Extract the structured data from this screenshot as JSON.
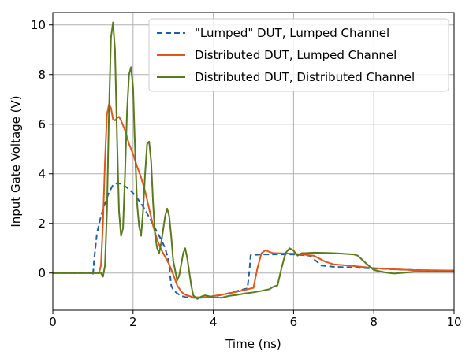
{
  "chart_data": {
    "type": "line",
    "xlabel": "Time (ns)",
    "ylabel": "Input Gate Voltage (V)",
    "xlim": [
      0,
      10
    ],
    "ylim": [
      -1.5,
      10.5
    ],
    "x_ticks": [
      0,
      2,
      4,
      6,
      8,
      10
    ],
    "y_ticks": [
      0,
      2,
      4,
      6,
      8,
      10
    ],
    "grid": true,
    "legend_position": "top-right",
    "series": [
      {
        "name": "\"Lumped\" DUT, Lumped Channel",
        "color": "#1f5fa8",
        "dash": "dashed",
        "points": [
          [
            0,
            0
          ],
          [
            0.99,
            0
          ],
          [
            1.0,
            -0.1
          ],
          [
            1.03,
            0.55
          ],
          [
            1.1,
            1.6
          ],
          [
            1.2,
            2.3
          ],
          [
            1.3,
            2.8
          ],
          [
            1.4,
            3.25
          ],
          [
            1.5,
            3.55
          ],
          [
            1.6,
            3.62
          ],
          [
            1.7,
            3.6
          ],
          [
            1.8,
            3.5
          ],
          [
            1.9,
            3.38
          ],
          [
            2.0,
            3.22
          ],
          [
            2.1,
            3.02
          ],
          [
            2.2,
            2.8
          ],
          [
            2.3,
            2.55
          ],
          [
            2.4,
            2.25
          ],
          [
            2.5,
            1.95
          ],
          [
            2.6,
            1.65
          ],
          [
            2.7,
            1.35
          ],
          [
            2.8,
            1.0
          ],
          [
            2.87,
            0.6
          ],
          [
            2.9,
            0.3
          ],
          [
            2.95,
            -0.5
          ],
          [
            3.0,
            -0.68
          ],
          [
            3.1,
            -0.82
          ],
          [
            3.2,
            -0.92
          ],
          [
            3.3,
            -0.97
          ],
          [
            3.5,
            -1.0
          ],
          [
            3.7,
            -1.0
          ],
          [
            4.0,
            -0.95
          ],
          [
            4.3,
            -0.85
          ],
          [
            4.6,
            -0.72
          ],
          [
            4.85,
            -0.62
          ],
          [
            4.9,
            0.1
          ],
          [
            4.93,
            0.72
          ],
          [
            5.2,
            0.75
          ],
          [
            5.6,
            0.75
          ],
          [
            6.0,
            0.75
          ],
          [
            6.4,
            0.7
          ],
          [
            6.55,
            0.5
          ],
          [
            6.7,
            0.3
          ],
          [
            7.0,
            0.25
          ],
          [
            7.5,
            0.22
          ],
          [
            8.0,
            0.18
          ],
          [
            8.5,
            0.15
          ],
          [
            9.0,
            0.12
          ],
          [
            9.5,
            0.1
          ],
          [
            10.0,
            0.1
          ]
        ]
      },
      {
        "name": "Distributed DUT, Lumped Channel",
        "color": "#e0571c",
        "dash": "solid",
        "points": [
          [
            0,
            0
          ],
          [
            1.15,
            0
          ],
          [
            1.2,
            0.3
          ],
          [
            1.25,
            2.0
          ],
          [
            1.3,
            4.5
          ],
          [
            1.35,
            6.4
          ],
          [
            1.4,
            6.8
          ],
          [
            1.45,
            6.65
          ],
          [
            1.5,
            6.2
          ],
          [
            1.55,
            6.15
          ],
          [
            1.6,
            6.25
          ],
          [
            1.65,
            6.3
          ],
          [
            1.7,
            6.15
          ],
          [
            1.8,
            5.75
          ],
          [
            1.9,
            5.2
          ],
          [
            2.0,
            4.8
          ],
          [
            2.1,
            4.3
          ],
          [
            2.2,
            3.85
          ],
          [
            2.3,
            3.3
          ],
          [
            2.4,
            2.6
          ],
          [
            2.5,
            1.9
          ],
          [
            2.6,
            1.35
          ],
          [
            2.7,
            0.95
          ],
          [
            2.8,
            0.65
          ],
          [
            2.9,
            0.35
          ],
          [
            3.0,
            -0.05
          ],
          [
            3.1,
            -0.5
          ],
          [
            3.2,
            -0.75
          ],
          [
            3.3,
            -0.88
          ],
          [
            3.5,
            -0.98
          ],
          [
            3.8,
            -0.98
          ],
          [
            4.0,
            -0.93
          ],
          [
            4.3,
            -0.85
          ],
          [
            4.6,
            -0.75
          ],
          [
            5.0,
            -0.6
          ],
          [
            5.1,
            0.2
          ],
          [
            5.2,
            0.8
          ],
          [
            5.3,
            0.92
          ],
          [
            5.4,
            0.85
          ],
          [
            5.5,
            0.8
          ],
          [
            6.0,
            0.78
          ],
          [
            6.5,
            0.7
          ],
          [
            6.8,
            0.45
          ],
          [
            7.0,
            0.35
          ],
          [
            7.5,
            0.28
          ],
          [
            8.0,
            0.2
          ],
          [
            8.5,
            0.15
          ],
          [
            9.0,
            0.12
          ],
          [
            10.0,
            0.1
          ]
        ]
      },
      {
        "name": "Distributed DUT, Distributed Channel",
        "color": "#5a7a1e",
        "dash": "solid",
        "points": [
          [
            0,
            0
          ],
          [
            1.2,
            0
          ],
          [
            1.25,
            -0.15
          ],
          [
            1.3,
            0.3
          ],
          [
            1.35,
            2.5
          ],
          [
            1.4,
            6.5
          ],
          [
            1.45,
            9.5
          ],
          [
            1.5,
            10.1
          ],
          [
            1.55,
            9.0
          ],
          [
            1.6,
            5.5
          ],
          [
            1.65,
            2.5
          ],
          [
            1.7,
            1.5
          ],
          [
            1.75,
            1.8
          ],
          [
            1.8,
            4.0
          ],
          [
            1.85,
            6.5
          ],
          [
            1.9,
            8.0
          ],
          [
            1.95,
            8.3
          ],
          [
            2.0,
            7.5
          ],
          [
            2.05,
            5.0
          ],
          [
            2.1,
            2.8
          ],
          [
            2.15,
            1.9
          ],
          [
            2.2,
            1.5
          ],
          [
            2.25,
            2.5
          ],
          [
            2.3,
            4.0
          ],
          [
            2.35,
            5.2
          ],
          [
            2.4,
            5.3
          ],
          [
            2.45,
            4.5
          ],
          [
            2.5,
            2.8
          ],
          [
            2.55,
            1.5
          ],
          [
            2.6,
            1.0
          ],
          [
            2.65,
            0.8
          ],
          [
            2.7,
            1.2
          ],
          [
            2.8,
            2.3
          ],
          [
            2.85,
            2.6
          ],
          [
            2.9,
            2.3
          ],
          [
            2.95,
            1.5
          ],
          [
            3.0,
            0.5
          ],
          [
            3.1,
            -0.3
          ],
          [
            3.15,
            -0.1
          ],
          [
            3.25,
            0.8
          ],
          [
            3.3,
            1.0
          ],
          [
            3.35,
            0.6
          ],
          [
            3.45,
            -0.5
          ],
          [
            3.5,
            -0.9
          ],
          [
            3.6,
            -1.05
          ],
          [
            3.7,
            -0.95
          ],
          [
            3.8,
            -0.9
          ],
          [
            4.0,
            -0.98
          ],
          [
            4.2,
            -1.0
          ],
          [
            4.4,
            -0.92
          ],
          [
            4.6,
            -0.88
          ],
          [
            4.8,
            -0.82
          ],
          [
            5.0,
            -0.78
          ],
          [
            5.2,
            -0.72
          ],
          [
            5.4,
            -0.65
          ],
          [
            5.5,
            -0.55
          ],
          [
            5.6,
            -0.5
          ],
          [
            5.7,
            0.2
          ],
          [
            5.8,
            0.8
          ],
          [
            5.9,
            1.0
          ],
          [
            6.0,
            0.9
          ],
          [
            6.1,
            0.7
          ],
          [
            6.2,
            0.8
          ],
          [
            6.3,
            0.8
          ],
          [
            6.5,
            0.82
          ],
          [
            7.0,
            0.8
          ],
          [
            7.5,
            0.75
          ],
          [
            7.6,
            0.7
          ],
          [
            7.8,
            0.4
          ],
          [
            8.0,
            0.12
          ],
          [
            8.3,
            0.02
          ],
          [
            8.5,
            -0.02
          ],
          [
            8.8,
            0.02
          ],
          [
            9.0,
            0.05
          ],
          [
            10.0,
            0.05
          ]
        ]
      }
    ]
  }
}
